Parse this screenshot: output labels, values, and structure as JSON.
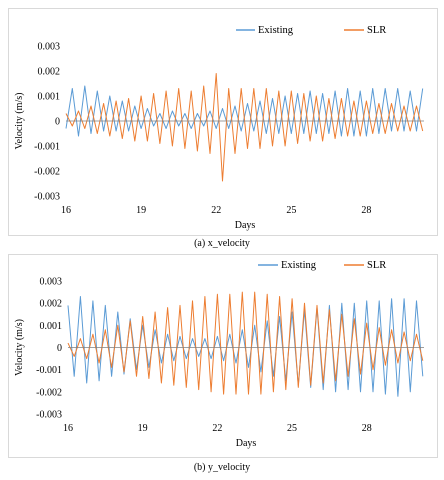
{
  "colors": {
    "existing": "#5b9bd5",
    "slr": "#ed7d31",
    "axis": "#7f7f7f",
    "grid": "#d9d9d9",
    "text": "#000000"
  },
  "chart_data": [
    {
      "type": "line",
      "caption": "(a) x_velocity",
      "xlabel": "Days",
      "ylabel": "Velocity (m/s)",
      "xlim": [
        16,
        30.3
      ],
      "ylim": [
        -0.003,
        0.003
      ],
      "xticks": [
        16,
        19,
        22,
        25,
        28
      ],
      "xtick_labels": [
        "16",
        "19",
        "22",
        "25",
        "28"
      ],
      "yticks": [
        0.003,
        0.002,
        0.001,
        0,
        -0.001,
        -0.002,
        -0.003
      ],
      "ytick_labels": [
        "0.003",
        "0.002",
        "0.001",
        "0",
        "-0.001",
        "-0.002",
        "-0.003"
      ],
      "grid": "none",
      "legend_position": "top-right",
      "series": [
        {
          "name": "Existing",
          "x": [
            16.0,
            16.25,
            16.5,
            16.75,
            17.0,
            17.25,
            17.5,
            17.75,
            18.0,
            18.25,
            18.5,
            18.75,
            19.0,
            19.25,
            19.5,
            19.75,
            20.0,
            20.25,
            20.5,
            20.75,
            21.0,
            21.25,
            21.5,
            21.75,
            22.0,
            22.25,
            22.5,
            22.75,
            23.0,
            23.25,
            23.5,
            23.75,
            24.0,
            24.25,
            24.5,
            24.75,
            25.0,
            25.25,
            25.5,
            25.75,
            26.0,
            26.25,
            26.5,
            26.75,
            27.0,
            27.25,
            27.5,
            27.75,
            28.0,
            28.25,
            28.5,
            28.75,
            29.0,
            29.25,
            29.5,
            29.75,
            30.0,
            30.25
          ],
          "y": [
            -0.0003,
            0.0013,
            -0.0006,
            0.0014,
            -0.0005,
            0.0012,
            -0.0004,
            0.001,
            -0.0004,
            0.0008,
            -0.0004,
            0.0006,
            -0.0003,
            0.0005,
            -0.0002,
            0.0003,
            -0.0003,
            0.0004,
            -0.0002,
            0.0003,
            -0.0003,
            0.0003,
            -0.0002,
            0.0004,
            -0.0003,
            0.0005,
            -0.0003,
            0.0006,
            -0.0004,
            0.0007,
            -0.0004,
            0.0008,
            -0.0005,
            0.0009,
            -0.0005,
            0.001,
            -0.0005,
            0.0011,
            -0.0005,
            0.0012,
            -0.0005,
            0.0011,
            -0.0005,
            0.0012,
            -0.0006,
            0.0013,
            -0.0006,
            0.0012,
            -0.0006,
            0.0013,
            -0.0005,
            0.0013,
            -0.0004,
            0.0013,
            -0.0004,
            0.0012,
            -0.0004,
            0.0013
          ]
        },
        {
          "name": "SLR",
          "x": [
            16.0,
            16.25,
            16.5,
            16.75,
            17.0,
            17.25,
            17.5,
            17.75,
            18.0,
            18.25,
            18.5,
            18.75,
            19.0,
            19.25,
            19.5,
            19.75,
            20.0,
            20.25,
            20.5,
            20.75,
            21.0,
            21.25,
            21.5,
            21.75,
            22.0,
            22.25,
            22.5,
            22.75,
            23.0,
            23.25,
            23.5,
            23.75,
            24.0,
            24.25,
            24.5,
            24.75,
            25.0,
            25.25,
            25.5,
            25.75,
            26.0,
            26.25,
            26.5,
            26.75,
            27.0,
            27.25,
            27.5,
            27.75,
            28.0,
            28.25,
            28.5,
            28.75,
            29.0,
            29.25,
            29.5,
            29.75,
            30.0,
            30.25
          ],
          "y": [
            0.0003,
            -0.0002,
            0.0004,
            -0.0003,
            0.0006,
            -0.0005,
            0.0007,
            -0.0006,
            0.0008,
            -0.0007,
            0.0009,
            -0.0008,
            0.001,
            -0.0008,
            0.0011,
            -0.0009,
            0.0012,
            -0.001,
            0.0013,
            -0.0011,
            0.0012,
            -0.0012,
            0.0014,
            -0.0013,
            0.0019,
            -0.0024,
            0.0013,
            -0.0013,
            0.0013,
            -0.0011,
            0.0013,
            -0.0011,
            0.0013,
            -0.001,
            0.0012,
            -0.001,
            0.0012,
            -0.0009,
            0.0011,
            -0.0008,
            0.001,
            -0.0008,
            0.0009,
            -0.0007,
            0.0009,
            -0.0006,
            0.0008,
            -0.0006,
            0.0008,
            -0.0005,
            0.0007,
            -0.0005,
            0.0007,
            -0.0004,
            0.0006,
            -0.0004,
            0.0006,
            -0.0004
          ]
        }
      ]
    },
    {
      "type": "line",
      "caption": "(b) y_velocity",
      "xlabel": "Days",
      "ylabel": "Velocity (m/s)",
      "xlim": [
        16,
        30.3
      ],
      "ylim": [
        -0.003,
        0.003
      ],
      "xticks": [
        16,
        19,
        22,
        25,
        28
      ],
      "xtick_labels": [
        "16",
        "19",
        "22",
        "25",
        "28"
      ],
      "yticks": [
        0.003,
        0.002,
        0.001,
        0,
        -0.001,
        -0.002,
        -0.003
      ],
      "ytick_labels": [
        "0.003",
        "0.002",
        "0.001",
        "0",
        "-0.001",
        "-0.002",
        "-0.003"
      ],
      "grid": "none",
      "legend_position": "top-right",
      "series": [
        {
          "name": "Existing",
          "x": [
            16.0,
            16.25,
            16.5,
            16.75,
            17.0,
            17.25,
            17.5,
            17.75,
            18.0,
            18.25,
            18.5,
            18.75,
            19.0,
            19.25,
            19.5,
            19.75,
            20.0,
            20.25,
            20.5,
            20.75,
            21.0,
            21.25,
            21.5,
            21.75,
            22.0,
            22.25,
            22.5,
            22.75,
            23.0,
            23.25,
            23.5,
            23.75,
            24.0,
            24.25,
            24.5,
            24.75,
            25.0,
            25.25,
            25.5,
            25.75,
            26.0,
            26.25,
            26.5,
            26.75,
            27.0,
            27.25,
            27.5,
            27.75,
            28.0,
            28.25,
            28.5,
            28.75,
            29.0,
            29.25,
            29.5,
            29.75,
            30.0,
            30.25
          ],
          "y": [
            0.0019,
            -0.0013,
            0.0023,
            -0.0016,
            0.0021,
            -0.0015,
            0.0019,
            -0.0013,
            0.0016,
            -0.0012,
            0.0013,
            -0.001,
            0.001,
            -0.0009,
            0.0008,
            -0.0007,
            0.0006,
            -0.0006,
            0.0005,
            -0.0005,
            0.0004,
            -0.0004,
            0.0004,
            -0.0005,
            0.0005,
            -0.0006,
            0.0006,
            -0.0007,
            0.0008,
            -0.0009,
            0.001,
            -0.0011,
            0.0012,
            -0.0013,
            0.0014,
            -0.0015,
            0.0016,
            -0.0017,
            0.0017,
            -0.0018,
            0.0018,
            -0.0019,
            0.0019,
            -0.002,
            0.002,
            -0.0019,
            0.002,
            -0.002,
            0.0021,
            -0.002,
            0.0021,
            -0.0021,
            0.0022,
            -0.0022,
            0.0022,
            -0.002,
            0.0021,
            -0.0013
          ]
        },
        {
          "name": "SLR",
          "x": [
            16.0,
            16.25,
            16.5,
            16.75,
            17.0,
            17.25,
            17.5,
            17.75,
            18.0,
            18.25,
            18.5,
            18.75,
            19.0,
            19.25,
            19.5,
            19.75,
            20.0,
            20.25,
            20.5,
            20.75,
            21.0,
            21.25,
            21.5,
            21.75,
            22.0,
            22.25,
            22.5,
            22.75,
            23.0,
            23.25,
            23.5,
            23.75,
            24.0,
            24.25,
            24.5,
            24.75,
            25.0,
            25.25,
            25.5,
            25.75,
            26.0,
            26.25,
            26.5,
            26.75,
            27.0,
            27.25,
            27.5,
            27.75,
            28.0,
            28.25,
            28.5,
            28.75,
            29.0,
            29.25,
            29.5,
            29.75,
            30.0,
            30.25
          ],
          "y": [
            0.0002,
            -0.0004,
            0.0004,
            -0.0005,
            0.0006,
            -0.0007,
            0.0008,
            -0.0009,
            0.001,
            -0.0011,
            0.0012,
            -0.0013,
            0.0014,
            -0.0014,
            0.0016,
            -0.0016,
            0.0018,
            -0.0017,
            0.0019,
            -0.0018,
            0.0021,
            -0.0019,
            0.0023,
            -0.002,
            0.0024,
            -0.0021,
            0.0024,
            -0.0021,
            0.0025,
            -0.0021,
            0.0025,
            -0.0021,
            0.0024,
            -0.002,
            0.0023,
            -0.0019,
            0.0022,
            -0.0018,
            0.002,
            -0.0017,
            0.0019,
            -0.0016,
            0.0017,
            -0.0015,
            0.0015,
            -0.0013,
            0.0013,
            -0.0012,
            0.0011,
            -0.001,
            0.0009,
            -0.0008,
            0.0008,
            -0.0007,
            0.0007,
            -0.0006,
            0.0006,
            -0.0006
          ]
        }
      ]
    }
  ]
}
